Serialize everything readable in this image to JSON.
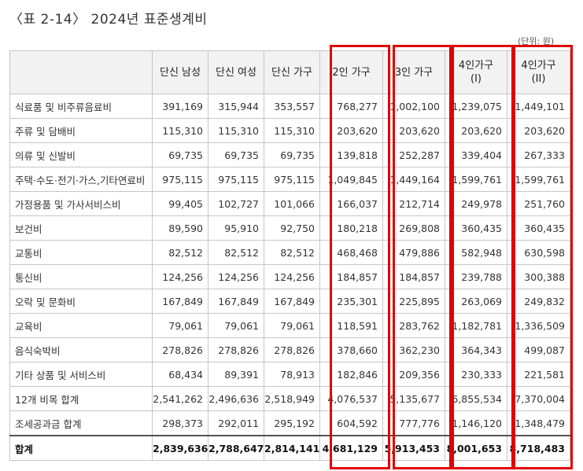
{
  "title": "〈표 2-14〉 2024년 표준생계비",
  "unit": "(단위: 원)",
  "header": [
    "",
    "단신 남성",
    "단신 여성",
    "단신 가구",
    "2인 가구",
    "3인 가구",
    "4인가구\n(I)",
    "4인가구\n(II)"
  ],
  "rows": [
    {
      "label": "식료품 및 비주류음료비",
      "values": [
        "391,169",
        "315,944",
        "353,557",
        "768,277",
        "1,002,100",
        "1,239,075",
        "1,449,101"
      ]
    },
    {
      "label": "주류 및 담배비",
      "values": [
        "115,310",
        "115,310",
        "115,310",
        "203,620",
        "203,620",
        "203,620",
        "203,620"
      ]
    },
    {
      "label": "의류 및 신발비",
      "values": [
        "69,735",
        "69,735",
        "69,735",
        "139,818",
        "252,287",
        "339,404",
        "267,333"
      ]
    },
    {
      "label": "주택·수도·전기·가스,기타연료비",
      "values": [
        "975,115",
        "975,115",
        "975,115",
        "1,049,845",
        "1,449,164",
        "1,599,761",
        "1,599,761"
      ]
    },
    {
      "label": "가정용품 및 가사서비스비",
      "values": [
        "99,405",
        "102,727",
        "101,066",
        "166,037",
        "212,714",
        "249,978",
        "251,760"
      ]
    },
    {
      "label": "보건비",
      "values": [
        "89,590",
        "95,910",
        "92,750",
        "180,218",
        "269,808",
        "360,435",
        "360,435"
      ]
    },
    {
      "label": "교통비",
      "values": [
        "82,512",
        "82,512",
        "82,512",
        "468,468",
        "479,886",
        "582,948",
        "630,598"
      ]
    },
    {
      "label": "통신비",
      "values": [
        "124,256",
        "124,256",
        "124,256",
        "184,857",
        "184,857",
        "239,788",
        "300,388"
      ]
    },
    {
      "label": "오락 및 문화비",
      "values": [
        "167,849",
        "167,849",
        "167,849",
        "235,301",
        "225,895",
        "263,069",
        "249,832"
      ]
    },
    {
      "label": "교육비",
      "values": [
        "79,061",
        "79,061",
        "79,061",
        "118,591",
        "283,762",
        "1,182,781",
        "1,336,509"
      ]
    },
    {
      "label": "음식숙박비",
      "values": [
        "278,826",
        "278,826",
        "278,826",
        "378,660",
        "362,230",
        "364,343",
        "499,087"
      ]
    },
    {
      "label": "기타 상품 및 서비스비",
      "values": [
        "68,434",
        "89,391",
        "78,913",
        "182,846",
        "209,356",
        "230,333",
        "221,581"
      ]
    },
    {
      "label": "12개 비목 합계",
      "values": [
        "2,541,262",
        "2,496,636",
        "2,518,949",
        "4,076,537",
        "5,135,677",
        "6,855,534",
        "7,370,004"
      ]
    },
    {
      "label": "조세공과금 합계",
      "values": [
        "298,373",
        "292,011",
        "295,192",
        "604,592",
        "777,776",
        "1,146,120",
        "1,348,479"
      ]
    }
  ],
  "total": {
    "label": "합계",
    "values": [
      "2,839,636",
      "2,788,647",
      "2,814,141",
      "4,681,129",
      "5,913,453",
      "8,001,653",
      "8,718,483"
    ]
  },
  "highlight_color": "#e00000"
}
